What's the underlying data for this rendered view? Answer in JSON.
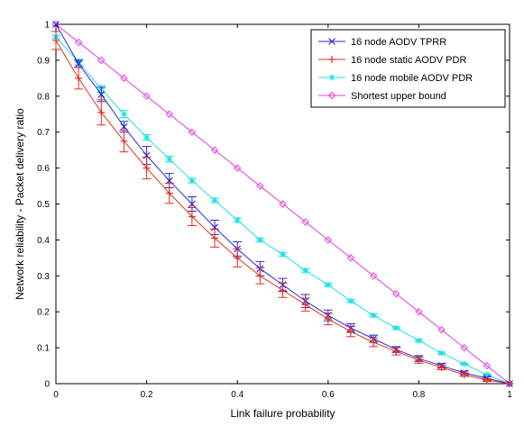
{
  "chart_data": {
    "type": "line",
    "xlabel": "Link failure probability",
    "ylabel": "Network reliability - Packet delivery ratio",
    "xlim": [
      0,
      1
    ],
    "ylim": [
      0,
      1
    ],
    "x_ticks": [
      "0",
      "0.2",
      "0.4",
      "0.6",
      "0.8",
      "1"
    ],
    "x_tick_values": [
      0,
      0.2,
      0.4,
      0.6,
      0.8,
      1
    ],
    "y_ticks": [
      "0",
      "0.1",
      "0.2",
      "0.3",
      "0.4",
      "0.5",
      "0.6",
      "0.7",
      "0.8",
      "0.9",
      "1"
    ],
    "y_tick_values": [
      0,
      0.1,
      0.2,
      0.3,
      0.4,
      0.5,
      0.6,
      0.7,
      0.8,
      0.9,
      1
    ],
    "grid": false,
    "legend_position": "top-right",
    "x": [
      0,
      0.05,
      0.1,
      0.15,
      0.2,
      0.25,
      0.3,
      0.35,
      0.4,
      0.45,
      0.5,
      0.55,
      0.6,
      0.65,
      0.7,
      0.75,
      0.8,
      0.85,
      0.9,
      0.95,
      1
    ],
    "series": [
      {
        "name": "16 node AODV TPRR",
        "color": "#2a2ad4",
        "marker": "x",
        "values": [
          1.0,
          0.89,
          0.805,
          0.715,
          0.635,
          0.565,
          0.5,
          0.435,
          0.375,
          0.32,
          0.275,
          0.23,
          0.19,
          0.155,
          0.125,
          0.095,
          0.07,
          0.05,
          0.03,
          0.015,
          0.0
        ],
        "errors": [
          0,
          0.01,
          0.02,
          0.015,
          0.025,
          0.02,
          0.02,
          0.02,
          0.02,
          0.02,
          0.018,
          0.018,
          0.015,
          0.012,
          0.01,
          0.008,
          0.008,
          0.006,
          0.005,
          0.004,
          0
        ]
      },
      {
        "name": "16 node static AODV PDR",
        "color": "#e0301e",
        "marker": "plus",
        "values": [
          0.955,
          0.85,
          0.755,
          0.675,
          0.6,
          0.53,
          0.465,
          0.405,
          0.35,
          0.3,
          0.26,
          0.22,
          0.18,
          0.145,
          0.115,
          0.09,
          0.065,
          0.045,
          0.025,
          0.01,
          0.0
        ],
        "errors": [
          0.025,
          0.03,
          0.035,
          0.03,
          0.03,
          0.028,
          0.025,
          0.025,
          0.025,
          0.022,
          0.02,
          0.018,
          0.016,
          0.014,
          0.012,
          0.01,
          0.008,
          0.006,
          0.005,
          0.004,
          0
        ]
      },
      {
        "name": "16 node mobile AODV PDR",
        "color": "#1fe0e0",
        "marker": "star",
        "values": [
          0.965,
          0.895,
          0.82,
          0.75,
          0.685,
          0.625,
          0.565,
          0.51,
          0.455,
          0.4,
          0.36,
          0.315,
          0.275,
          0.23,
          0.19,
          0.155,
          0.12,
          0.085,
          0.055,
          0.025,
          0.0
        ],
        "errors": [
          0.005,
          0.008,
          0.01,
          0.01,
          0.008,
          0.008,
          0.006,
          0.006,
          0.006,
          0.005,
          0.005,
          0.005,
          0.004,
          0.004,
          0.004,
          0.003,
          0.003,
          0.003,
          0.002,
          0.002,
          0
        ]
      },
      {
        "name": "Shortest upper bound",
        "color": "#e040e0",
        "marker": "diamond",
        "values": [
          1.0,
          0.95,
          0.9,
          0.85,
          0.8,
          0.75,
          0.7,
          0.65,
          0.6,
          0.55,
          0.5,
          0.45,
          0.4,
          0.35,
          0.3,
          0.25,
          0.2,
          0.15,
          0.1,
          0.05,
          0.0
        ]
      }
    ]
  }
}
